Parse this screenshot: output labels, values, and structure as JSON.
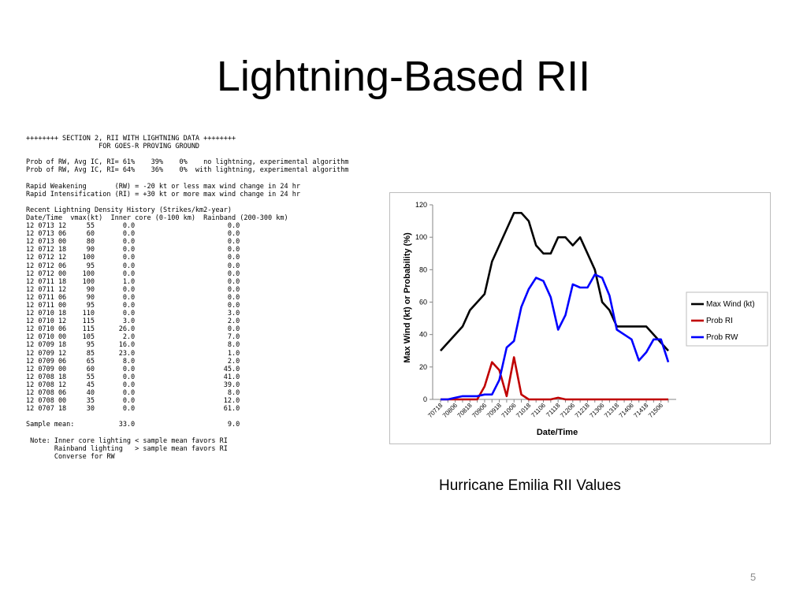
{
  "title": "Lightning-Based RII",
  "report_lines": [
    "++++++++ SECTION 2, RII WITH LIGHTNING DATA ++++++++",
    "                  FOR GOES-R PROVING GROUND",
    "",
    "Prob of RW, Avg IC, RI= 61%    39%    0%    no lightning, experimental algorithm",
    "Prob of RW, Avg IC, RI= 64%    36%    0%  with lightning, experimental algorithm",
    "",
    "Rapid Weakening       (RW) = -20 kt or less max wind change in 24 hr",
    "Rapid Intensification (RI) = +30 kt or more max wind change in 24 hr",
    "",
    "Recent Lightning Density History (Strikes/km2-year)",
    "Date/Time  vmax(kt)  Inner core (0-100 km)  Rainband (200-300 km)",
    "12 0713 12     55       0.0                       0.0",
    "12 0713 06     60       0.0                       0.0",
    "12 0713 00     80       0.0                       0.0",
    "12 0712 18     90       0.0                       0.0",
    "12 0712 12    100       0.0                       0.0",
    "12 0712 06     95       0.0                       0.0",
    "12 0712 00    100       0.0                       0.0",
    "12 0711 18    100       1.0                       0.0",
    "12 0711 12     90       0.0                       0.0",
    "12 0711 06     90       0.0                       0.0",
    "12 0711 00     95       0.0                       0.0",
    "12 0710 18    110       0.0                       3.0",
    "12 0710 12    115       3.0                       2.0",
    "12 0710 06    115      26.0                       0.0",
    "12 0710 00    105       2.0                       7.0",
    "12 0709 18     95      16.0                       8.0",
    "12 0709 12     85      23.0                       1.0",
    "12 0709 06     65       8.0                       2.0",
    "12 0709 00     60       0.0                      45.0",
    "12 0708 18     55       0.0                      41.0",
    "12 0708 12     45       0.0                      39.0",
    "12 0708 06     40       0.0                       8.0",
    "12 0708 00     35       0.0                      12.0",
    "12 0707 18     30       0.0                      61.0",
    "",
    "Sample mean:           33.0                       9.0",
    "",
    " Note: Inner core lighting < sample mean favors RI",
    "       Rainband lighting   > sample mean favors RI",
    "       Converse for RW"
  ],
  "chart_data": {
    "type": "line",
    "title": "",
    "xlabel": "Date/Time",
    "ylabel": "Max Wind (kt) or Probability (%)",
    "ylim": [
      0,
      120
    ],
    "yticks": [
      0,
      20,
      40,
      60,
      80,
      100,
      120
    ],
    "x_tick_labels": [
      "70718",
      "70806",
      "70818",
      "70906",
      "70918",
      "71006",
      "71018",
      "71106",
      "71118",
      "71206",
      "71218",
      "71306",
      "71318",
      "71406",
      "71418",
      "71506"
    ],
    "grid": false,
    "legend_position": "right",
    "series": [
      {
        "name": "Max Wind (kt)",
        "color": "#000000",
        "values": [
          30,
          35,
          40,
          45,
          55,
          60,
          65,
          85,
          95,
          105,
          115,
          115,
          110,
          95,
          90,
          90,
          100,
          100,
          95,
          100,
          90,
          80,
          60,
          55,
          45,
          45,
          45,
          45,
          45,
          40,
          35,
          30
        ]
      },
      {
        "name": "Prob RI",
        "color": "#c00000",
        "values": [
          0,
          0,
          0,
          0,
          0,
          0,
          8,
          23,
          18,
          2,
          26,
          3,
          0,
          0,
          0,
          0,
          1,
          0,
          0,
          0,
          0,
          0,
          0,
          0,
          0,
          0,
          0,
          0,
          0,
          0,
          0,
          0
        ]
      },
      {
        "name": "Prob RW",
        "color": "#0000ff",
        "values": [
          0,
          0,
          1,
          2,
          2,
          2,
          3,
          3,
          12,
          32,
          36,
          57,
          68,
          75,
          73,
          63,
          43,
          52,
          71,
          69,
          69,
          77,
          75,
          64,
          43,
          40,
          37,
          24,
          29,
          37,
          37,
          23
        ]
      }
    ]
  },
  "caption": "Hurricane Emilia RII Values",
  "page_number": "5"
}
